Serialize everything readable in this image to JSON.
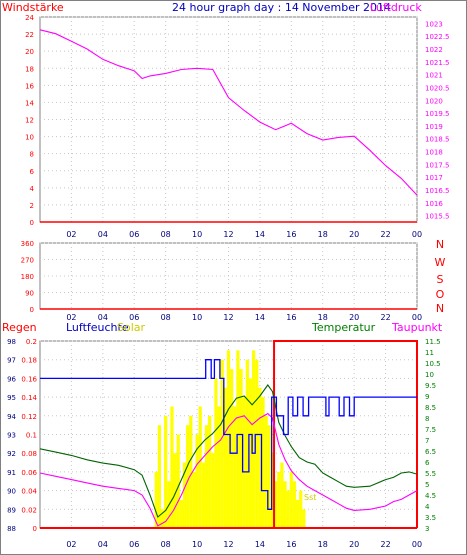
{
  "title": "24 hour graph day : 14 November 2014",
  "colors": {
    "frame": "#808080",
    "grid": "#c8c8c8",
    "pressure": "#ff00ff",
    "wind": "#ff0000",
    "direction": "#ff0000",
    "humidity": "#0000ff",
    "temperature": "#006400",
    "dewpoint": "#ff00ff",
    "solar": "#ffff00",
    "rain": "#ff0000",
    "axis_red": "#ff0000",
    "axis_blue": "#000080",
    "axis_magenta": "#ff00ff",
    "axis_green": "#008000",
    "solar_label": "#cccc00"
  },
  "x_ticks": [
    "02",
    "04",
    "06",
    "08",
    "10",
    "12",
    "14",
    "16",
    "18",
    "20",
    "22",
    "00"
  ],
  "chart_data": [
    {
      "type": "line",
      "name": "wind-pressure-panel",
      "left_label": "Windstärke",
      "right_label": "Luftdruck",
      "left_ticks": [
        "24",
        "22",
        "20",
        "18",
        "16",
        "14",
        "12",
        "10",
        "8",
        "6",
        "4",
        "2",
        "0"
      ],
      "left_ylim": [
        0,
        24
      ],
      "right_ticks": [
        "1023",
        "1022.5",
        "1022",
        "1021.5",
        "1021",
        "1020.5",
        "1020",
        "1019.5",
        "1019",
        "1018.5",
        "1018",
        "1017.5",
        "1017",
        "1016.5",
        "1016",
        "1015.5"
      ],
      "right_ylim": [
        1015.25,
        1023.25
      ],
      "xlim": [
        0,
        24
      ],
      "grid": true,
      "series": [
        {
          "axis": "right",
          "x": [
            0,
            1,
            2,
            3,
            4,
            5,
            6,
            6.5,
            7,
            8,
            9,
            10,
            11,
            12,
            13,
            14,
            15,
            16,
            17,
            18,
            19,
            20,
            21,
            22,
            23,
            24
          ],
          "values": [
            1022.75,
            1022.6,
            1022.3,
            1022.0,
            1021.6,
            1021.35,
            1021.15,
            1020.85,
            1020.95,
            1021.05,
            1021.2,
            1021.25,
            1021.2,
            1020.1,
            1019.6,
            1019.15,
            1018.85,
            1019.1,
            1018.7,
            1018.45,
            1018.55,
            1018.6,
            1018.05,
            1017.45,
            1016.95,
            1016.3
          ]
        },
        {
          "axis": "left",
          "x": [
            0,
            24
          ],
          "values": [
            0,
            0
          ]
        }
      ]
    },
    {
      "type": "line",
      "name": "wind-direction-panel",
      "left_ticks": [
        "360",
        "270",
        "180",
        "90",
        "0"
      ],
      "left_ylim": [
        0,
        360
      ],
      "right_ticks": [
        "N",
        "W",
        "S",
        "O",
        "N"
      ],
      "xlim": [
        0,
        24
      ],
      "grid": true,
      "series": [
        {
          "axis": "left",
          "x": [
            0,
            24
          ],
          "values": [
            0,
            0
          ]
        }
      ]
    },
    {
      "type": "line",
      "name": "climate-panel",
      "labels": {
        "rain": "Regen",
        "humidity": "Luftfeuchte",
        "solar": "Solar",
        "temperature": "Temperatur",
        "dewpoint": "Taupunkt",
        "sst": "Sst"
      },
      "humidity_ticks": [
        "98",
        "97",
        "96",
        "95",
        "94",
        "93",
        "92",
        "91",
        "90",
        "89",
        "88"
      ],
      "humidity_ylim": [
        88,
        98
      ],
      "rain_ticks": [
        "0.2",
        "0.18",
        "0.16",
        "0.14",
        "0.12",
        "0.1",
        "0.08",
        "0.06",
        "0.04",
        "0.02",
        "0"
      ],
      "rain_ylim": [
        0,
        0.2
      ],
      "temperature_ticks": [
        "11.5",
        "11",
        "10.5",
        "10",
        "9.5",
        "9",
        "8.5",
        "8",
        "7.5",
        "7",
        "6.5",
        "6",
        "5.5",
        "5",
        "4.5",
        "4",
        "3.5",
        "3"
      ],
      "temperature_ylim": [
        3,
        11.5
      ],
      "xlim": [
        0,
        24
      ],
      "grid": true,
      "series": [
        {
          "name": "Luftfeuchte",
          "axis": "humidity",
          "x": [
            0,
            10.55,
            10.55,
            10.9,
            10.9,
            11.1,
            11.1,
            11.45,
            11.45,
            11.7,
            11.7,
            12.1,
            12.1,
            12.55,
            12.55,
            12.9,
            12.9,
            13.3,
            13.3,
            13.5,
            13.5,
            13.7,
            13.7,
            14.1,
            14.1,
            14.5,
            14.5,
            14.75,
            14.75,
            15.05,
            15.05,
            15.5,
            15.5,
            15.8,
            15.8,
            16.1,
            16.1,
            16.4,
            16.4,
            16.75,
            16.75,
            17.1,
            17.1,
            18.2,
            18.2,
            18.4,
            18.4,
            19.05,
            19.05,
            19.35,
            19.35,
            19.7,
            19.7,
            20.0,
            20.0,
            24
          ],
          "values": [
            96,
            96,
            97,
            97,
            96,
            96,
            97,
            97,
            96,
            96,
            93,
            93,
            92,
            92,
            93,
            93,
            91,
            91,
            93,
            93,
            92,
            92,
            93,
            93,
            90,
            90,
            89,
            89,
            95,
            95,
            94,
            94,
            93,
            93,
            95,
            95,
            94,
            94,
            95,
            95,
            94,
            94,
            95,
            95,
            94,
            94,
            95,
            95,
            94,
            94,
            95,
            95,
            94,
            94,
            95,
            95
          ]
        },
        {
          "name": "Temperatur",
          "axis": "temperature",
          "x": [
            0,
            1,
            2,
            3,
            4,
            5,
            6,
            6.5,
            7,
            7.5,
            8,
            8.5,
            9,
            9.5,
            10,
            10.5,
            11,
            11.5,
            12,
            12.5,
            13,
            13.5,
            14,
            14.5,
            14.8,
            15.2,
            15.6,
            16,
            16.5,
            17,
            17.5,
            18,
            18.5,
            19,
            19.5,
            20,
            21,
            22,
            22.5,
            23,
            23.5,
            24
          ],
          "values": [
            6.6,
            6.45,
            6.3,
            6.1,
            5.95,
            5.85,
            5.65,
            5.4,
            4.5,
            3.5,
            3.8,
            4.4,
            5.2,
            6.0,
            6.6,
            7.0,
            7.3,
            7.7,
            8.4,
            8.9,
            9.0,
            8.6,
            9.0,
            9.5,
            9.2,
            7.8,
            7.2,
            6.7,
            6.2,
            6.0,
            5.9,
            5.5,
            5.3,
            5.1,
            4.9,
            4.85,
            4.9,
            5.2,
            5.3,
            5.5,
            5.55,
            5.45
          ]
        },
        {
          "name": "Taupunkt",
          "axis": "temperature",
          "x": [
            0,
            1,
            2,
            3,
            4,
            5,
            6,
            6.5,
            7,
            7.5,
            8,
            8.5,
            9,
            9.5,
            10,
            10.5,
            11,
            11.5,
            12,
            12.5,
            13,
            13.5,
            14,
            14.5,
            14.8,
            15.2,
            15.6,
            16,
            16.5,
            17,
            17.5,
            18,
            18.5,
            19,
            19.5,
            20,
            21,
            22,
            22.5,
            23,
            23.5,
            24
          ],
          "values": [
            5.5,
            5.35,
            5.2,
            5.05,
            4.9,
            4.8,
            4.7,
            4.5,
            3.9,
            3.1,
            3.3,
            3.8,
            4.5,
            5.3,
            5.9,
            6.3,
            6.7,
            7.0,
            7.6,
            8.0,
            8.1,
            7.7,
            8.0,
            8.2,
            8.0,
            6.8,
            6.1,
            5.6,
            5.2,
            4.9,
            4.7,
            4.5,
            4.3,
            4.1,
            3.9,
            3.8,
            3.85,
            4.0,
            4.2,
            4.3,
            4.5,
            4.7
          ]
        },
        {
          "name": "Solar",
          "axis": "rain",
          "type": "area",
          "x": [
            7.2,
            7.4,
            7.6,
            7.8,
            8.0,
            8.2,
            8.4,
            8.6,
            8.8,
            9.0,
            9.2,
            9.4,
            9.6,
            9.8,
            10.0,
            10.2,
            10.4,
            10.6,
            10.8,
            11.0,
            11.2,
            11.4,
            11.6,
            11.8,
            12.0,
            12.2,
            12.4,
            12.6,
            12.8,
            13.0,
            13.2,
            13.4,
            13.6,
            13.8,
            14.0,
            14.2,
            14.4,
            14.6,
            14.8,
            15.0,
            15.2,
            15.4,
            15.6,
            15.8,
            16.0,
            16.2,
            16.4,
            16.6,
            16.8,
            17.0
          ],
          "values": [
            0.0,
            0.06,
            0.11,
            0.02,
            0.12,
            0.05,
            0.13,
            0.08,
            0.1,
            0.03,
            0.07,
            0.11,
            0.12,
            0.06,
            0.1,
            0.13,
            0.07,
            0.11,
            0.12,
            0.08,
            0.16,
            0.13,
            0.18,
            0.15,
            0.19,
            0.17,
            0.13,
            0.19,
            0.17,
            0.14,
            0.18,
            0.16,
            0.19,
            0.18,
            0.15,
            0.14,
            0.12,
            0.11,
            0.08,
            0.05,
            0.06,
            0.07,
            0.05,
            0.04,
            0.06,
            0.05,
            0.03,
            0.04,
            0.02,
            0.0
          ]
        },
        {
          "name": "Regen",
          "axis": "rain",
          "x": [
            0,
            24
          ],
          "values": [
            0,
            0
          ]
        }
      ],
      "rain_box": {
        "x_start": 14.9,
        "x_end": 24,
        "y_top": 0.2
      }
    }
  ]
}
